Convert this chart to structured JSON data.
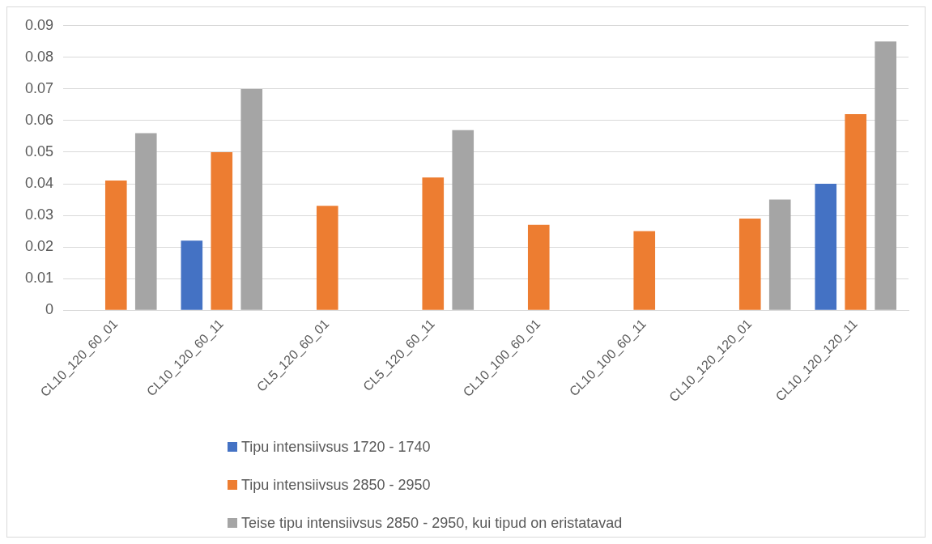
{
  "chart_data": {
    "type": "bar",
    "categories": [
      "CL10_120_60_01",
      "CL10_120_60_11",
      "CL5_120_60_01",
      "CL5_120_60_11",
      "CL10_100_60_01",
      "CL10_100_60_11",
      "CL10_120_120_01",
      "CL10_120_120_11"
    ],
    "series": [
      {
        "name": "Tipu intensiivsus 1720 - 1740",
        "color": "#4472c4",
        "values": [
          null,
          0.022,
          null,
          null,
          null,
          null,
          null,
          0.04
        ]
      },
      {
        "name": "Tipu intensiivsus 2850 - 2950",
        "color": "#ed7d31",
        "values": [
          0.041,
          0.05,
          0.033,
          0.042,
          0.027,
          0.025,
          0.029,
          0.062
        ]
      },
      {
        "name": "Teise tipu intensiivsus 2850 - 2950, kui tipud on eristatavad",
        "color": "#a5a5a5",
        "values": [
          0.056,
          0.07,
          null,
          0.057,
          null,
          null,
          0.035,
          0.085
        ]
      }
    ],
    "ylim": [
      0,
      0.09
    ],
    "yticks": [
      0,
      0.01,
      0.02,
      0.03,
      0.04,
      0.05,
      0.06,
      0.07,
      0.08,
      0.09
    ],
    "grid": "y",
    "legend": "bottom"
  }
}
